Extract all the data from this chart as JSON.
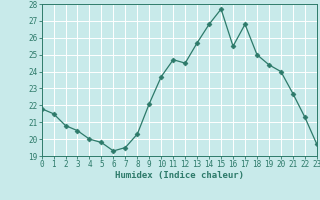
{
  "x": [
    0,
    1,
    2,
    3,
    4,
    5,
    6,
    7,
    8,
    9,
    10,
    11,
    12,
    13,
    14,
    15,
    16,
    17,
    18,
    19,
    20,
    21,
    22,
    23
  ],
  "y": [
    21.8,
    21.5,
    20.8,
    20.5,
    20.0,
    19.8,
    19.3,
    19.5,
    20.3,
    22.1,
    23.7,
    24.7,
    24.5,
    25.7,
    26.8,
    27.7,
    25.5,
    26.8,
    25.0,
    24.4,
    24.0,
    22.7,
    21.3,
    19.7
  ],
  "xlim": [
    0,
    23
  ],
  "ylim": [
    19,
    28
  ],
  "yticks": [
    19,
    20,
    21,
    22,
    23,
    24,
    25,
    26,
    27,
    28
  ],
  "xticks": [
    0,
    1,
    2,
    3,
    4,
    5,
    6,
    7,
    8,
    9,
    10,
    11,
    12,
    13,
    14,
    15,
    16,
    17,
    18,
    19,
    20,
    21,
    22,
    23
  ],
  "xlabel": "Humidex (Indice chaleur)",
  "line_color": "#2d7a6a",
  "marker": "D",
  "marker_size": 2.5,
  "bg_color": "#c8eaea",
  "grid_color": "#ffffff",
  "tick_color": "#2d7a6a",
  "label_color": "#2d7a6a",
  "font_family": "monospace",
  "tick_fontsize": 5.5,
  "xlabel_fontsize": 6.5
}
